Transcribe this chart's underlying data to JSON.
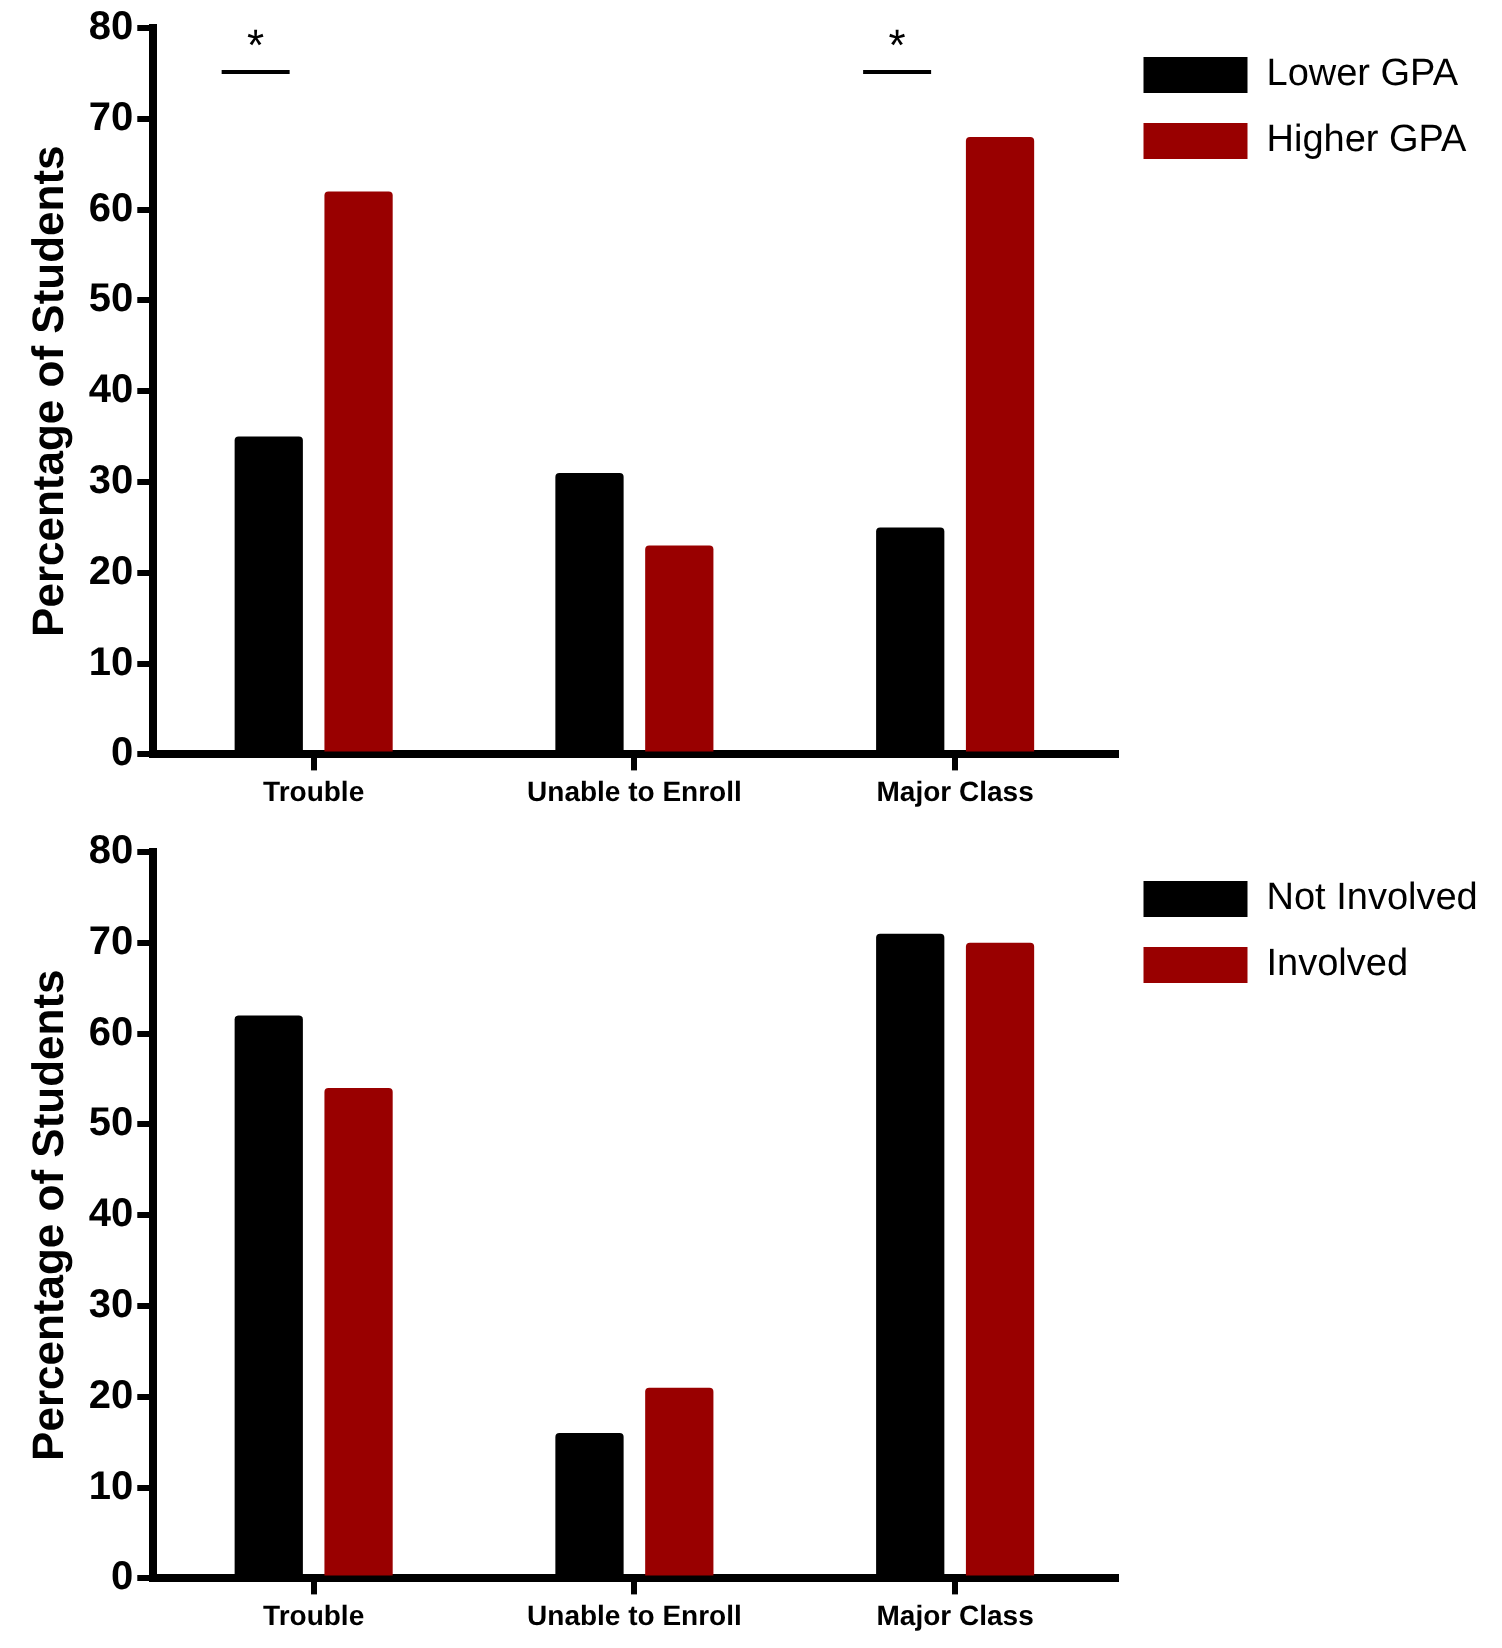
{
  "chart_data": [
    {
      "type": "bar",
      "ylabel": "Percentage of Students",
      "categories": [
        "Trouble",
        "Unable to Enroll",
        "Major Class"
      ],
      "series": [
        {
          "name": "Lower GPA",
          "color": "#000000",
          "values": [
            35,
            31,
            25
          ]
        },
        {
          "name": "Higher GPA",
          "color": "#990000",
          "values": [
            62,
            23,
            68
          ]
        }
      ],
      "ylim": [
        0,
        80
      ],
      "yticks": [
        0,
        10,
        20,
        30,
        40,
        50,
        60,
        70,
        80
      ],
      "legend": "top right",
      "annotations": [
        "*",
        "*"
      ]
    },
    {
      "type": "bar",
      "ylabel": "Percentage of Students",
      "categories": [
        "Trouble",
        "Unable to Enroll",
        "Major Class"
      ],
      "series": [
        {
          "name": "Not Involved",
          "color": "#000000",
          "values": [
            62,
            16,
            71
          ]
        },
        {
          "name": "Involved",
          "color": "#990000",
          "values": [
            54,
            21,
            70
          ]
        }
      ],
      "ylim": [
        0,
        80
      ],
      "yticks": [
        0,
        10,
        20,
        30,
        40,
        50,
        60,
        70,
        80
      ],
      "legend": "top right"
    }
  ]
}
